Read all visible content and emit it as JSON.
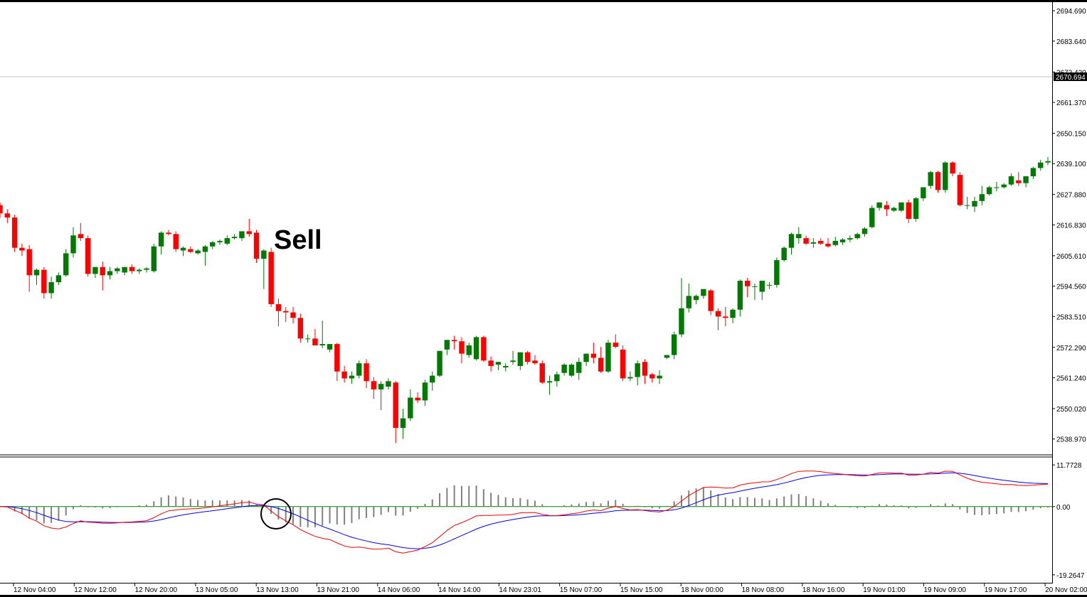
{
  "chart_data": {
    "type": "candlestick",
    "annotation": "Sell",
    "colors": {
      "up": "#007a00",
      "down": "#ff0000",
      "macd_line": "#0000ff",
      "signal_line": "#ff0000",
      "histogram": "#808080",
      "zero_line": "#008000"
    },
    "current_price": "2670.694",
    "price_axis": {
      "ticks": [
        "2694.690",
        "2683.640",
        "2672.420",
        "2661.370",
        "2650.150",
        "2639.100",
        "2627.880",
        "2616.830",
        "2605.610",
        "2594.560",
        "2583.510",
        "2572.290",
        "2561.240",
        "2550.020",
        "2538.970"
      ],
      "ylim": [
        2534.5,
        2697.3
      ]
    },
    "indicator_axis": {
      "ticks": [
        "11.7728",
        "0.00",
        "-19.2647"
      ],
      "ylim": [
        -20.5,
        13.0
      ]
    },
    "time_axis": [
      "12 Nov 04:00",
      "12 Nov 12:00",
      "12 Nov 20:00",
      "13 Nov 05:00",
      "13 Nov 13:00",
      "13 Nov 21:00",
      "14 Nov 06:00",
      "14 Nov 14:00",
      "14 Nov 23:01",
      "15 Nov 07:00",
      "15 Nov 15:00",
      "18 Nov 00:00",
      "18 Nov 08:00",
      "18 Nov 16:00",
      "19 Nov 01:00",
      "19 Nov 09:00",
      "19 Nov 17:00",
      "20 Nov 02:00"
    ],
    "candles": [
      [
        2624.0,
        2625.0,
        2619.5,
        2621.0
      ],
      [
        2621.0,
        2622.5,
        2617.5,
        2619.5
      ],
      [
        2619.5,
        2620.5,
        2607.0,
        2608.5
      ],
      [
        2608.5,
        2610.0,
        2605.5,
        2607.5
      ],
      [
        2608.0,
        2609.5,
        2592.5,
        2598.5
      ],
      [
        2598.5,
        2601.0,
        2595.0,
        2600.5
      ],
      [
        2600.5,
        2601.5,
        2590.0,
        2592.0
      ],
      [
        2592.0,
        2598.0,
        2590.0,
        2596.0
      ],
      [
        2596.0,
        2599.5,
        2595.0,
        2598.5
      ],
      [
        2598.5,
        2608.0,
        2598.0,
        2606.5
      ],
      [
        2606.5,
        2616.0,
        2605.0,
        2613.0
      ],
      [
        2613.5,
        2617.5,
        2611.0,
        2612.0
      ],
      [
        2612.0,
        2613.0,
        2598.0,
        2599.0
      ],
      [
        2599.0,
        2601.5,
        2597.5,
        2601.5
      ],
      [
        2601.5,
        2603.5,
        2593.0,
        2598.5
      ],
      [
        2598.5,
        2601.5,
        2597.0,
        2600.0
      ],
      [
        2600.0,
        2601.5,
        2599.0,
        2601.0
      ],
      [
        2599.5,
        2601.5,
        2598.5,
        2601.5
      ],
      [
        2601.5,
        2602.5,
        2599.0,
        2600.0
      ],
      [
        2600.0,
        2601.0,
        2599.0,
        2600.5
      ],
      [
        2600.5,
        2601.5,
        2599.5,
        2601.0
      ],
      [
        2600.0,
        2610.0,
        2599.5,
        2609.0
      ],
      [
        2609.0,
        2614.5,
        2606.0,
        2614.0
      ],
      [
        2614.0,
        2615.0,
        2613.0,
        2613.5
      ],
      [
        2613.5,
        2614.5,
        2607.0,
        2608.0
      ],
      [
        2607.5,
        2609.0,
        2605.5,
        2608.5
      ],
      [
        2608.0,
        2609.0,
        2606.5,
        2607.0
      ],
      [
        2606.5,
        2608.0,
        2606.0,
        2607.5
      ],
      [
        2607.0,
        2609.5,
        2602.0,
        2609.0
      ],
      [
        2609.0,
        2611.0,
        2608.0,
        2610.5
      ],
      [
        2610.5,
        2611.5,
        2609.5,
        2611.0
      ],
      [
        2610.0,
        2613.0,
        2609.5,
        2612.0
      ],
      [
        2612.0,
        2613.5,
        2611.5,
        2612.5
      ],
      [
        2612.0,
        2614.5,
        2611.0,
        2614.5
      ],
      [
        2614.5,
        2619.0,
        2612.5,
        2613.5
      ],
      [
        2614.0,
        2615.0,
        2603.0,
        2604.5
      ],
      [
        2604.5,
        2608.0,
        2593.5,
        2607.5
      ],
      [
        2607.0,
        2608.5,
        2587.0,
        2588.0
      ],
      [
        2588.0,
        2590.0,
        2580.0,
        2585.5
      ],
      [
        2585.5,
        2587.0,
        2581.5,
        2585.0
      ],
      [
        2585.0,
        2587.0,
        2581.0,
        2583.0
      ],
      [
        2583.0,
        2584.5,
        2574.0,
        2575.5
      ],
      [
        2575.5,
        2577.0,
        2574.0,
        2575.5
      ],
      [
        2575.5,
        2579.0,
        2573.0,
        2573.0
      ],
      [
        2573.0,
        2582.0,
        2572.0,
        2573.5
      ],
      [
        2571.5,
        2573.0,
        2570.5,
        2573.5
      ],
      [
        2573.5,
        2574.0,
        2560.0,
        2563.5
      ],
      [
        2563.5,
        2565.5,
        2559.5,
        2561.0
      ],
      [
        2561.0,
        2563.5,
        2559.0,
        2562.0
      ],
      [
        2562.0,
        2567.5,
        2561.0,
        2566.5
      ],
      [
        2566.5,
        2568.0,
        2557.5,
        2560.0
      ],
      [
        2560.0,
        2561.5,
        2553.5,
        2557.0
      ],
      [
        2557.0,
        2560.0,
        2549.5,
        2559.0
      ],
      [
        2558.0,
        2561.0,
        2557.0,
        2560.0
      ],
      [
        2559.5,
        2560.0,
        2537.5,
        2543.0
      ],
      [
        2543.0,
        2550.0,
        2539.0,
        2546.5
      ],
      [
        2546.5,
        2557.0,
        2545.5,
        2554.0
      ],
      [
        2554.0,
        2556.0,
        2552.0,
        2553.0
      ],
      [
        2553.0,
        2560.5,
        2551.0,
        2559.5
      ],
      [
        2559.5,
        2563.5,
        2556.5,
        2562.0
      ],
      [
        2562.0,
        2571.0,
        2561.5,
        2571.0
      ],
      [
        2571.5,
        2575.0,
        2569.5,
        2575.0
      ],
      [
        2575.0,
        2576.5,
        2571.5,
        2574.5
      ],
      [
        2574.5,
        2576.0,
        2566.5,
        2570.0
      ],
      [
        2569.5,
        2574.0,
        2568.5,
        2573.0
      ],
      [
        2568.0,
        2576.5,
        2567.5,
        2576.0
      ],
      [
        2576.0,
        2576.5,
        2567.0,
        2567.5
      ],
      [
        2567.5,
        2569.0,
        2563.5,
        2565.5
      ],
      [
        2566.0,
        2567.0,
        2564.0,
        2567.0
      ],
      [
        2565.0,
        2566.5,
        2563.5,
        2565.5
      ],
      [
        2567.0,
        2571.0,
        2566.0,
        2567.5
      ],
      [
        2565.5,
        2570.5,
        2564.0,
        2570.5
      ],
      [
        2570.5,
        2571.0,
        2566.0,
        2567.0
      ],
      [
        2567.5,
        2569.5,
        2566.0,
        2566.5
      ],
      [
        2566.5,
        2567.5,
        2559.0,
        2559.5
      ],
      [
        2559.5,
        2562.0,
        2555.0,
        2560.0
      ],
      [
        2560.0,
        2563.5,
        2558.0,
        2562.5
      ],
      [
        2563.0,
        2566.5,
        2562.0,
        2566.0
      ],
      [
        2562.0,
        2566.5,
        2561.5,
        2566.0
      ],
      [
        2563.0,
        2568.5,
        2560.5,
        2567.0
      ],
      [
        2567.0,
        2569.5,
        2565.5,
        2570.0
      ],
      [
        2570.0,
        2574.0,
        2566.5,
        2568.5
      ],
      [
        2568.5,
        2572.5,
        2563.0,
        2563.5
      ],
      [
        2563.5,
        2575.0,
        2563.0,
        2574.0
      ],
      [
        2574.0,
        2577.0,
        2572.0,
        2572.5
      ],
      [
        2571.5,
        2573.0,
        2560.0,
        2561.0
      ],
      [
        2561.0,
        2563.5,
        2560.0,
        2561.5
      ],
      [
        2561.5,
        2567.5,
        2558.5,
        2566.5
      ],
      [
        2567.0,
        2568.0,
        2559.0,
        2562.0
      ],
      [
        2562.5,
        2563.0,
        2559.5,
        2561.0
      ],
      [
        2561.0,
        2564.0,
        2559.0,
        2562.0
      ],
      [
        2568.5,
        2569.5,
        2568.0,
        2569.5
      ],
      [
        2569.5,
        2578.0,
        2568.0,
        2577.0
      ],
      [
        2577.0,
        2597.5,
        2576.0,
        2586.5
      ],
      [
        2586.5,
        2595.5,
        2585.0,
        2591.0
      ],
      [
        2589.5,
        2591.5,
        2588.0,
        2591.0
      ],
      [
        2591.0,
        2593.0,
        2590.0,
        2593.5
      ],
      [
        2593.0,
        2593.5,
        2584.0,
        2585.5
      ],
      [
        2585.5,
        2586.5,
        2578.5,
        2583.5
      ],
      [
        2583.5,
        2587.0,
        2580.0,
        2583.0
      ],
      [
        2583.0,
        2586.5,
        2581.0,
        2586.0
      ],
      [
        2586.0,
        2597.0,
        2583.5,
        2596.5
      ],
      [
        2596.5,
        2597.5,
        2590.5,
        2594.5
      ],
      [
        2594.5,
        2595.5,
        2589.5,
        2594.5
      ],
      [
        2592.5,
        2596.5,
        2589.5,
        2596.5
      ],
      [
        2595.0,
        2596.0,
        2593.5,
        2595.0
      ],
      [
        2595.0,
        2605.0,
        2594.0,
        2604.0
      ],
      [
        2604.0,
        2609.0,
        2603.5,
        2608.5
      ],
      [
        2608.5,
        2614.0,
        2606.0,
        2613.5
      ],
      [
        2612.0,
        2616.0,
        2610.0,
        2613.5
      ],
      [
        2612.0,
        2613.0,
        2609.5,
        2610.0
      ],
      [
        2610.0,
        2612.0,
        2608.5,
        2610.5
      ],
      [
        2611.0,
        2612.0,
        2609.5,
        2610.0
      ],
      [
        2610.0,
        2612.0,
        2608.5,
        2609.0
      ],
      [
        2609.5,
        2612.5,
        2609.0,
        2611.0
      ],
      [
        2610.5,
        2612.0,
        2609.5,
        2611.5
      ],
      [
        2611.5,
        2613.0,
        2610.5,
        2612.0
      ],
      [
        2612.0,
        2614.0,
        2611.5,
        2613.5
      ],
      [
        2613.5,
        2616.0,
        2612.5,
        2615.5
      ],
      [
        2616.0,
        2624.0,
        2615.5,
        2623.0
      ],
      [
        2623.0,
        2625.0,
        2622.0,
        2625.0
      ],
      [
        2624.0,
        2625.5,
        2620.0,
        2622.5
      ],
      [
        2622.0,
        2623.5,
        2621.5,
        2623.0
      ],
      [
        2622.0,
        2625.0,
        2621.5,
        2625.0
      ],
      [
        2625.0,
        2626.0,
        2617.5,
        2619.0
      ],
      [
        2619.0,
        2627.0,
        2618.0,
        2626.5
      ],
      [
        2626.5,
        2630.5,
        2625.5,
        2630.5
      ],
      [
        2631.0,
        2636.5,
        2630.0,
        2636.0
      ],
      [
        2636.0,
        2636.5,
        2628.5,
        2629.5
      ],
      [
        2629.5,
        2640.0,
        2628.5,
        2639.5
      ],
      [
        2639.5,
        2640.0,
        2634.5,
        2635.5
      ],
      [
        2635.0,
        2636.0,
        2623.5,
        2624.0
      ],
      [
        2624.0,
        2627.0,
        2622.5,
        2624.0
      ],
      [
        2623.5,
        2627.0,
        2621.5,
        2625.5
      ],
      [
        2625.5,
        2631.0,
        2624.0,
        2628.0
      ],
      [
        2628.0,
        2631.0,
        2627.5,
        2630.5
      ],
      [
        2630.5,
        2632.5,
        2629.0,
        2630.5
      ],
      [
        2630.5,
        2632.0,
        2630.0,
        2631.5
      ],
      [
        2631.5,
        2635.5,
        2631.0,
        2634.5
      ],
      [
        2633.0,
        2636.0,
        2631.0,
        2632.0
      ],
      [
        2632.0,
        2634.5,
        2630.5,
        2634.5
      ],
      [
        2634.5,
        2638.0,
        2633.5,
        2637.5
      ],
      [
        2637.5,
        2640.5,
        2636.5,
        2639.5
      ],
      [
        2639.5,
        2641.5,
        2638.5,
        2640.0
      ]
    ]
  }
}
